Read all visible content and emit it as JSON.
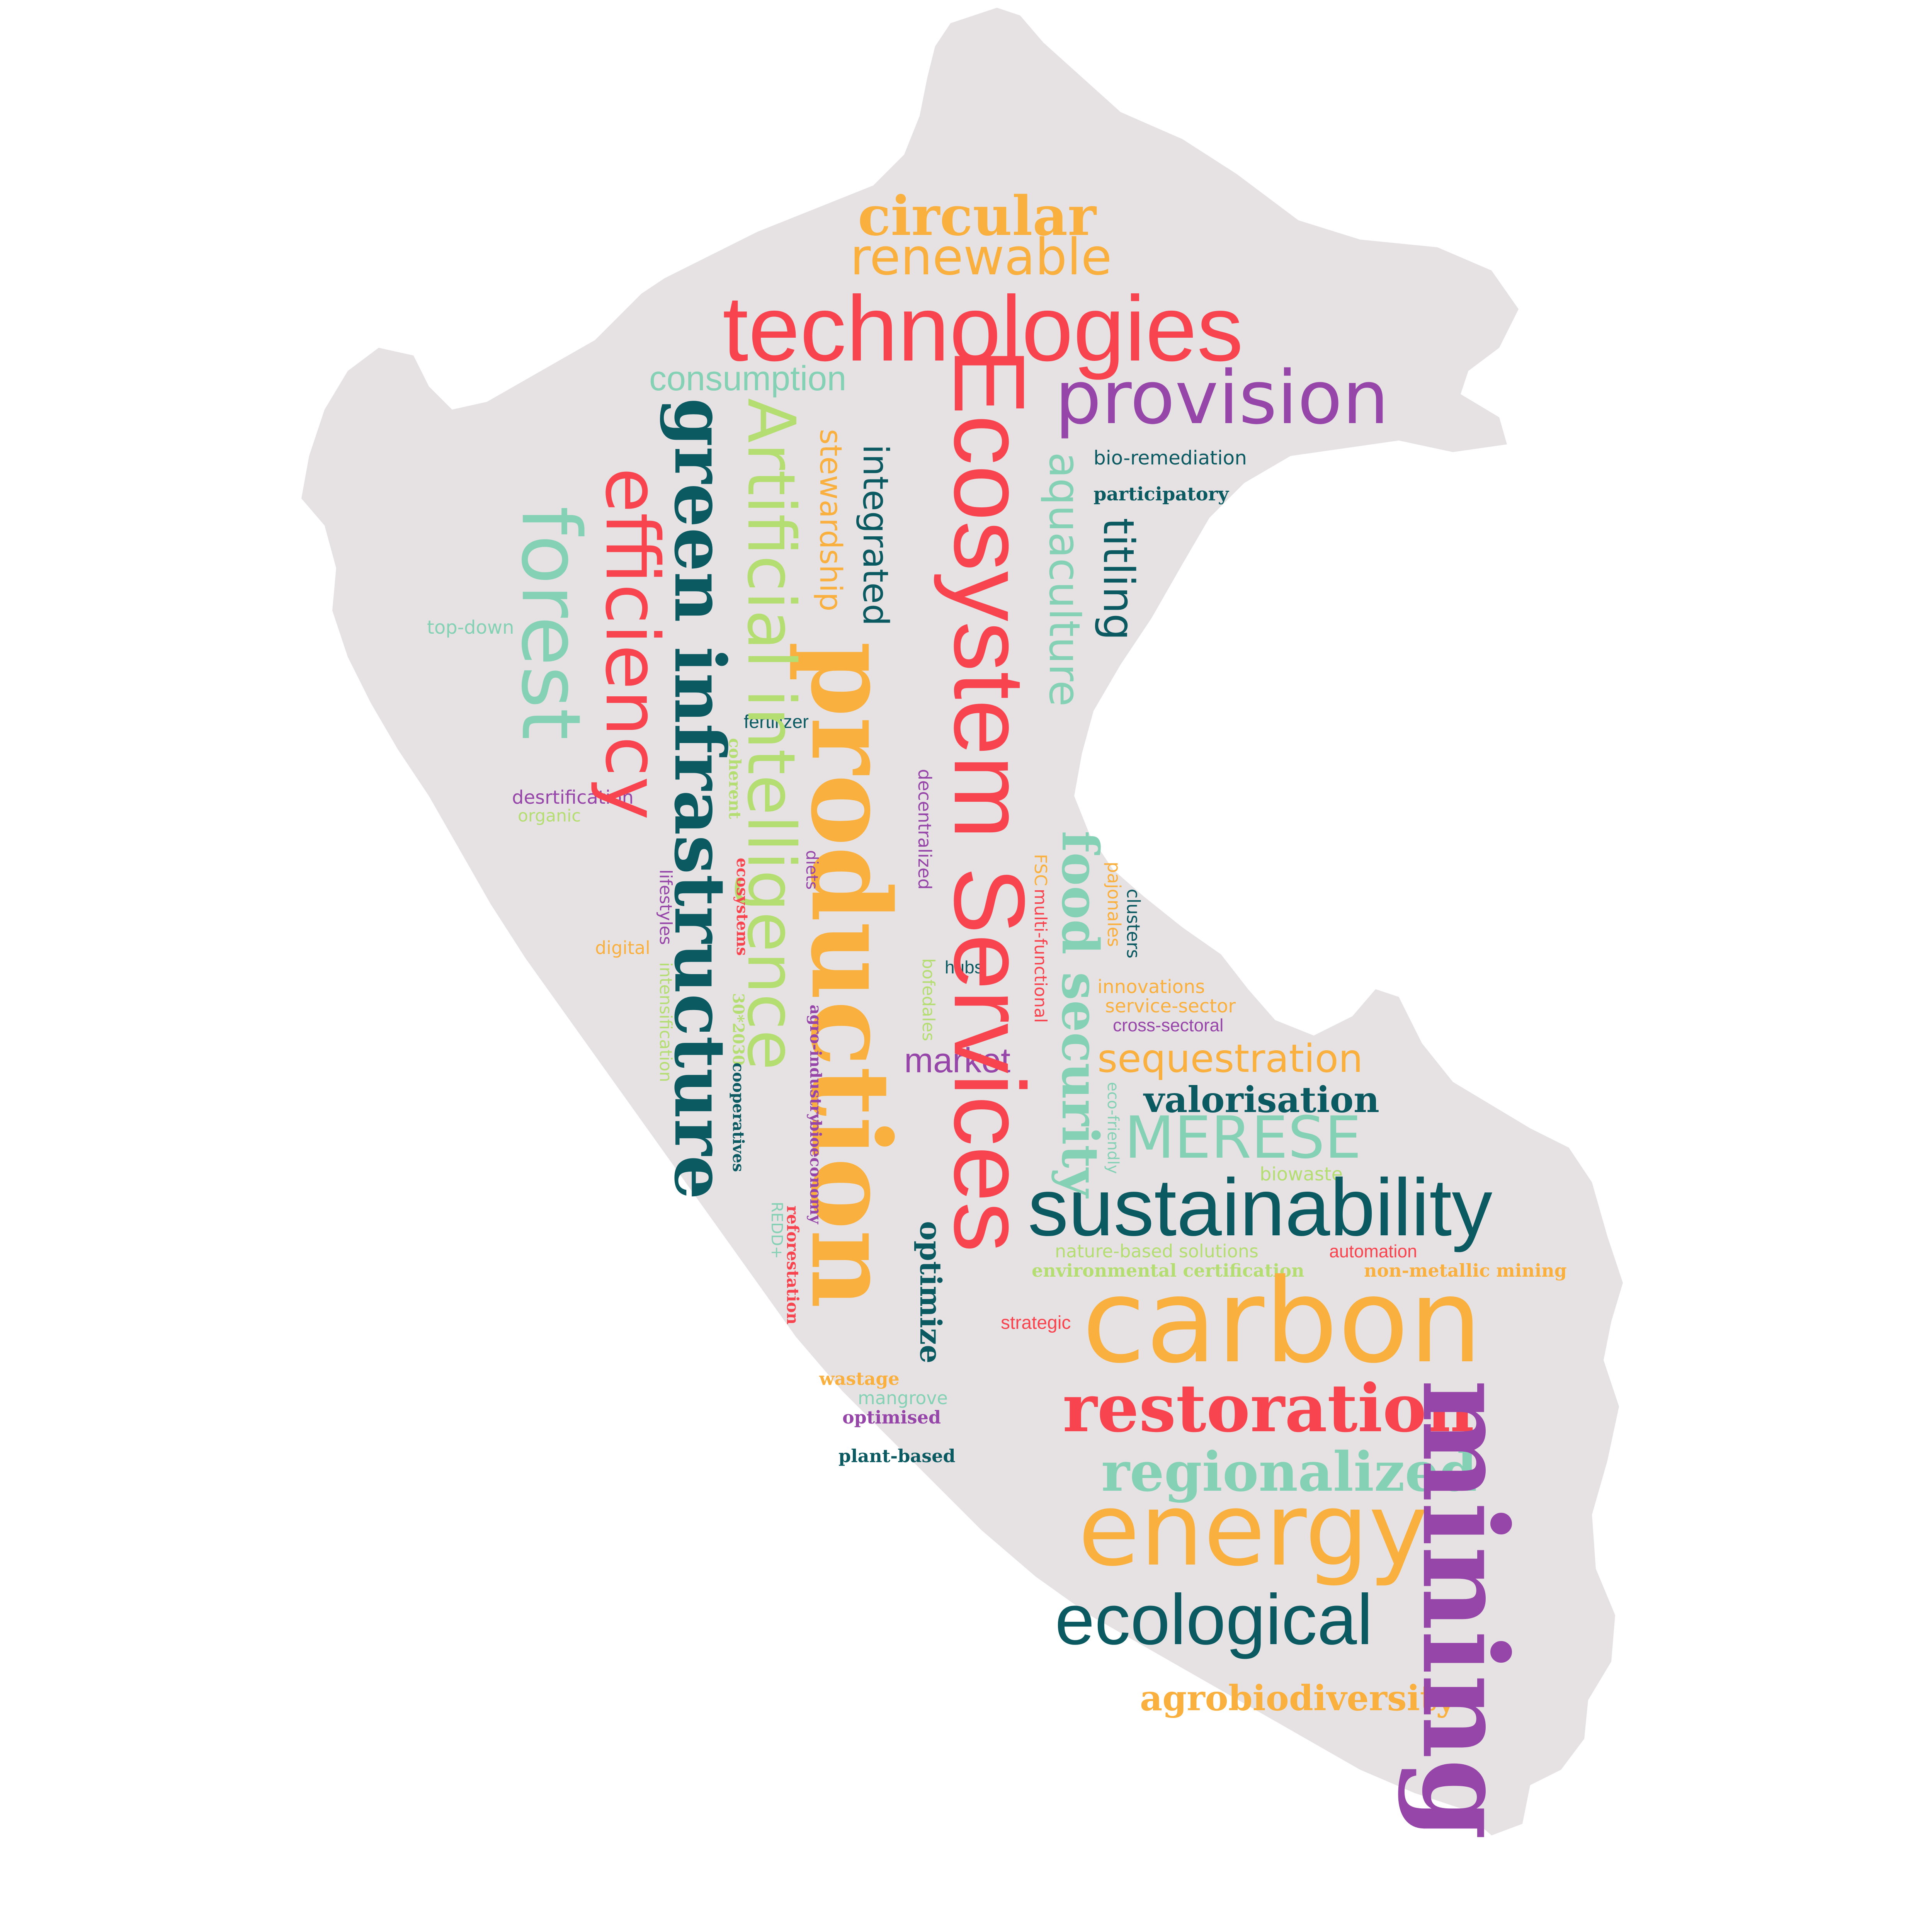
{
  "palette": {
    "red": "#f8444f",
    "orange": "#f9b03e",
    "purple": "#9646a8",
    "teal": "#0b5a62",
    "mint": "#84d1b5",
    "lime": "#b4dd72",
    "map_fill": "#e6e2e3"
  },
  "words": [
    {
      "id": "circular",
      "text": "circular",
      "color": "orange"
    },
    {
      "id": "renewable",
      "text": "renewable",
      "color": "orange"
    },
    {
      "id": "technologies",
      "text": "technologies",
      "color": "red"
    },
    {
      "id": "consumption",
      "text": "consumption",
      "color": "mint"
    },
    {
      "id": "provision",
      "text": "provision",
      "color": "purple"
    },
    {
      "id": "ecosystem-services",
      "text": "Ecosystem Services",
      "color": "red"
    },
    {
      "id": "production",
      "text": "production",
      "color": "orange"
    },
    {
      "id": "green-infrastructure",
      "text": "green infrastructure",
      "color": "teal"
    },
    {
      "id": "artificial-intelligence",
      "text": "Artificial intelligence",
      "color": "lime"
    },
    {
      "id": "efficiency",
      "text": "efficiency",
      "color": "red"
    },
    {
      "id": "forest",
      "text": "forest",
      "color": "mint"
    },
    {
      "id": "stewardship",
      "text": "stewardship",
      "color": "orange"
    },
    {
      "id": "integrated",
      "text": "integrated",
      "color": "teal"
    },
    {
      "id": "aquaculture",
      "text": "aquaculture",
      "color": "mint"
    },
    {
      "id": "titling",
      "text": "titling",
      "color": "teal"
    },
    {
      "id": "bio-remediation",
      "text": "bio-remediation",
      "color": "teal"
    },
    {
      "id": "participatory",
      "text": "participatory",
      "color": "teal"
    },
    {
      "id": "top-down",
      "text": "top-down",
      "color": "mint"
    },
    {
      "id": "fertilizer",
      "text": "fertilizer",
      "color": "teal"
    },
    {
      "id": "coherent",
      "text": "coherent",
      "color": "lime"
    },
    {
      "id": "desrtification",
      "text": "desrtification",
      "color": "purple"
    },
    {
      "id": "organic",
      "text": "organic",
      "color": "lime"
    },
    {
      "id": "decentralized",
      "text": "decentralized",
      "color": "purple"
    },
    {
      "id": "food-security",
      "text": "food security",
      "color": "mint"
    },
    {
      "id": "fsc",
      "text": "FSC",
      "color": "orange"
    },
    {
      "id": "multi-functional",
      "text": "multi-functional",
      "color": "red"
    },
    {
      "id": "pajonales",
      "text": "pajonales",
      "color": "orange"
    },
    {
      "id": "clusters",
      "text": "clusters",
      "color": "teal"
    },
    {
      "id": "diets",
      "text": "diets",
      "color": "purple"
    },
    {
      "id": "ecosystems",
      "text": "ecosystems",
      "color": "red"
    },
    {
      "id": "lifestyles",
      "text": "lifestyles",
      "color": "purple"
    },
    {
      "id": "digital",
      "text": "digital",
      "color": "orange"
    },
    {
      "id": "intensification",
      "text": "intensification",
      "color": "lime"
    },
    {
      "id": "30x2030",
      "text": "30*2030",
      "color": "lime"
    },
    {
      "id": "cooperatives",
      "text": "cooperatives",
      "color": "teal"
    },
    {
      "id": "agro-industry",
      "text": "agro-industry",
      "color": "purple"
    },
    {
      "id": "bioeconomy",
      "text": "bioeconomy",
      "color": "purple"
    },
    {
      "id": "hubs",
      "text": "hubs",
      "color": "teal"
    },
    {
      "id": "bofedales",
      "text": "bofedales",
      "color": "lime"
    },
    {
      "id": "innovations",
      "text": "innovations",
      "color": "orange"
    },
    {
      "id": "service-sector",
      "text": "service-sector",
      "color": "orange"
    },
    {
      "id": "cross-sectoral",
      "text": "cross-sectoral",
      "color": "purple"
    },
    {
      "id": "market",
      "text": "market",
      "color": "purple"
    },
    {
      "id": "sequestration",
      "text": "sequestration",
      "color": "orange"
    },
    {
      "id": "valorisation",
      "text": "valorisation",
      "color": "teal"
    },
    {
      "id": "eco-friendly",
      "text": "eco-friendly",
      "color": "mint"
    },
    {
      "id": "merese",
      "text": "MERESE",
      "color": "mint"
    },
    {
      "id": "biowaste",
      "text": "biowaste",
      "color": "lime"
    },
    {
      "id": "sustainability",
      "text": "sustainability",
      "color": "teal"
    },
    {
      "id": "reforestation",
      "text": "reforestation",
      "color": "red"
    },
    {
      "id": "redd",
      "text": "REDD+",
      "color": "mint"
    },
    {
      "id": "optimize",
      "text": "optimize",
      "color": "teal"
    },
    {
      "id": "nature-based-solutions",
      "text": "nature-based solutions",
      "color": "lime"
    },
    {
      "id": "environmental-certification",
      "text": "environmental certification",
      "color": "lime"
    },
    {
      "id": "automation",
      "text": "automation",
      "color": "red"
    },
    {
      "id": "non-metallic-mining",
      "text": "non-metallic mining",
      "color": "orange"
    },
    {
      "id": "carbon",
      "text": "carbon",
      "color": "orange"
    },
    {
      "id": "strategic",
      "text": "strategic",
      "color": "red"
    },
    {
      "id": "wastage",
      "text": "wastage",
      "color": "orange"
    },
    {
      "id": "mangrove",
      "text": "mangrove",
      "color": "mint"
    },
    {
      "id": "optimised",
      "text": "optimised",
      "color": "purple"
    },
    {
      "id": "plant-based",
      "text": "plant-based",
      "color": "teal"
    },
    {
      "id": "restoration",
      "text": "restoration",
      "color": "red"
    },
    {
      "id": "mining",
      "text": "mining",
      "color": "purple"
    },
    {
      "id": "regionalized",
      "text": "regionalized",
      "color": "mint"
    },
    {
      "id": "energy",
      "text": "energy",
      "color": "orange"
    },
    {
      "id": "ecological",
      "text": "ecological",
      "color": "teal"
    },
    {
      "id": "agrobiodiversity",
      "text": "agrobiodiversity",
      "color": "orange"
    }
  ]
}
